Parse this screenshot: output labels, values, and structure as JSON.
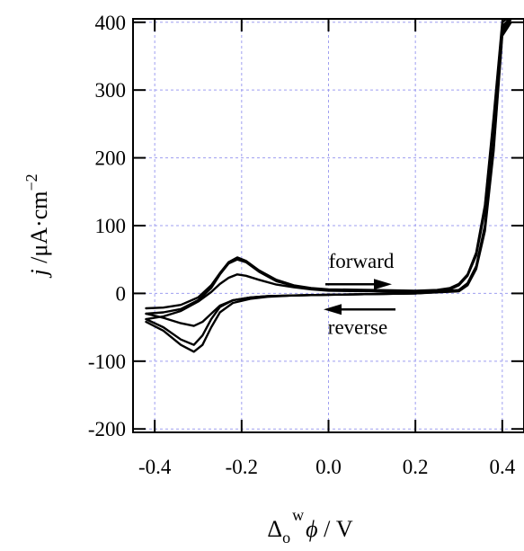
{
  "chart_data": {
    "type": "line",
    "xlabel": {
      "symbol": "Δ",
      "sub": "o",
      "sup": "w",
      "var": "ϕ",
      "unit": " / V"
    },
    "ylabel": {
      "var": "j",
      "unit": " /μA·cm",
      "sup": "−2"
    },
    "xlim": [
      -0.45,
      0.45
    ],
    "ylim": [
      -205,
      405
    ],
    "grid": true,
    "x_ticks": [
      -0.4,
      -0.2,
      0.0,
      0.2,
      0.4
    ],
    "x_tick_labels": [
      "-0.4",
      "-0.2",
      "0.0",
      "0.2",
      "0.4"
    ],
    "y_ticks": [
      -200,
      -100,
      0,
      100,
      200,
      300,
      400
    ],
    "y_tick_labels": [
      "-200",
      "-100",
      "0",
      "100",
      "200",
      "300",
      "400"
    ],
    "annotations": [
      {
        "text": "forward",
        "direction": "right",
        "x": -0.1,
        "y": 40
      },
      {
        "text": "reverse",
        "direction": "left",
        "x": 0.1,
        "y": -25
      }
    ],
    "series": [
      {
        "x": [
          -0.42,
          -0.38,
          -0.34,
          -0.3,
          -0.27,
          -0.25,
          -0.23,
          -0.21,
          -0.19,
          -0.16,
          -0.12,
          -0.08,
          -0.04,
          0.0,
          0.1,
          0.2,
          0.25,
          0.28,
          0.3,
          0.32,
          0.34,
          0.36,
          0.38,
          0.4,
          0.42,
          0.4,
          0.38,
          0.36,
          0.34,
          0.32,
          0.3,
          0.2,
          0.1,
          0.0,
          -0.08,
          -0.14,
          -0.18,
          -0.22,
          -0.25,
          -0.27,
          -0.29,
          -0.31,
          -0.34,
          -0.38,
          -0.42
        ],
        "y": [
          -22,
          -21,
          -17,
          -6,
          12,
          30,
          46,
          53,
          48,
          34,
          20,
          12,
          8,
          6,
          5,
          4,
          5,
          8,
          14,
          28,
          60,
          130,
          260,
          400,
          410,
          390,
          220,
          100,
          40,
          15,
          5,
          0,
          -1,
          -2,
          -3,
          -4,
          -6,
          -10,
          -20,
          -38,
          -62,
          -76,
          -68,
          -50,
          -38
        ]
      },
      {
        "x": [
          -0.42,
          -0.38,
          -0.34,
          -0.3,
          -0.27,
          -0.25,
          -0.23,
          -0.21,
          -0.19,
          -0.16,
          -0.12,
          -0.08,
          -0.04,
          0.0,
          0.1,
          0.2,
          0.25,
          0.28,
          0.3,
          0.32,
          0.34,
          0.36,
          0.38,
          0.4,
          0.42,
          0.4,
          0.38,
          0.36,
          0.34,
          0.32,
          0.3,
          0.2,
          0.1,
          0.0,
          -0.08,
          -0.14,
          -0.18,
          -0.22,
          -0.25,
          -0.27,
          -0.29,
          -0.31,
          -0.34,
          -0.38,
          -0.42
        ],
        "y": [
          -30,
          -28,
          -23,
          -10,
          8,
          28,
          44,
          50,
          46,
          32,
          18,
          11,
          7,
          5,
          4,
          3,
          4,
          7,
          13,
          27,
          58,
          126,
          255,
          395,
          405,
          385,
          215,
          96,
          38,
          14,
          4,
          0,
          -1,
          -2,
          -3,
          -5,
          -8,
          -14,
          -28,
          -50,
          -76,
          -86,
          -76,
          -55,
          -42
        ]
      },
      {
        "x": [
          -0.42,
          -0.38,
          -0.34,
          -0.3,
          -0.27,
          -0.25,
          -0.23,
          -0.21,
          -0.19,
          -0.16,
          -0.12,
          -0.08,
          -0.04,
          0.0,
          0.1,
          0.2,
          0.25,
          0.28,
          0.3,
          0.32,
          0.34,
          0.36,
          0.38,
          0.4,
          0.42,
          0.4,
          0.38,
          0.36,
          0.34,
          0.32,
          0.3,
          0.2,
          0.1,
          0.0,
          -0.08,
          -0.14,
          -0.18,
          -0.22,
          -0.25,
          -0.27,
          -0.29,
          -0.31,
          -0.34,
          -0.38,
          -0.42
        ],
        "y": [
          -38,
          -34,
          -26,
          -12,
          2,
          14,
          23,
          28,
          26,
          20,
          13,
          9,
          6,
          4,
          3,
          2,
          3,
          6,
          12,
          26,
          56,
          122,
          250,
          390,
          400,
          380,
          210,
          92,
          36,
          12,
          3,
          0,
          -1,
          -2,
          -3,
          -4,
          -6,
          -10,
          -18,
          -30,
          -42,
          -48,
          -44,
          -36,
          -30
        ]
      }
    ]
  }
}
